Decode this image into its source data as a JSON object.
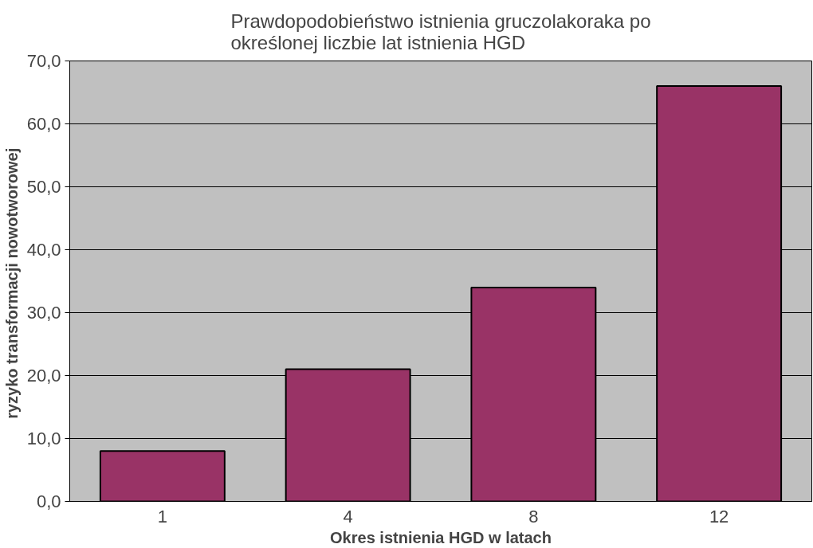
{
  "chart_data": {
    "type": "bar",
    "title": "Prawdopodobieństwo istnienia gruczolakoraka po\nokreślonej liczbie lat istnienia HGD",
    "xlabel": "Okres istnienia HGD w latach",
    "ylabel": "ryzyko transformacji  nowotworowej",
    "categories": [
      "1",
      "4",
      "8",
      "12"
    ],
    "values": [
      8,
      21,
      34,
      66
    ],
    "color": "#993366",
    "ylim": [
      0,
      70
    ],
    "yticks": [
      {
        "value": 0,
        "label": "0,0"
      },
      {
        "value": 10,
        "label": "10,0"
      },
      {
        "value": 20,
        "label": "20,0"
      },
      {
        "value": 30,
        "label": "30,0"
      },
      {
        "value": 40,
        "label": "40,0"
      },
      {
        "value": 50,
        "label": "50,0"
      },
      {
        "value": 60,
        "label": "60,0"
      },
      {
        "value": 70,
        "label": "70,0"
      }
    ],
    "grid": "y"
  }
}
